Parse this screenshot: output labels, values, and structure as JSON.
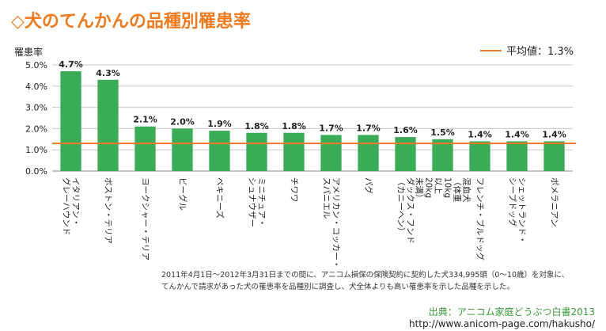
{
  "title": "◇犬のてんかんの品種別罹患率",
  "chart_data": {
    "type": "bar",
    "ylabel": "罹患率",
    "ylim": [
      0,
      5
    ],
    "yticks": [
      "0.0%",
      "1.0%",
      "2.0%",
      "3.0%",
      "4.0%",
      "5.0%"
    ],
    "grid": true,
    "categories": [
      [
        "イタリアン・",
        "グレーハウンド"
      ],
      [
        "ボストン・テリア"
      ],
      [
        "ヨークシャー・テリア"
      ],
      [
        "ビーグル"
      ],
      [
        "ペキニーズ"
      ],
      [
        "ミニチュア・",
        "シュナウザー"
      ],
      [
        "チワワ"
      ],
      [
        "アメリカン・コッカー・",
        "スパニエル"
      ],
      [
        "パグ"
      ],
      [
        "ダックス・フンド",
        "（カニーヘン）"
      ],
      [
        "混血犬",
        "（体重",
        "10kg",
        "以上",
        "20kg",
        "未満）"
      ],
      [
        "フレンチ・ブルドッグ"
      ],
      [
        "シェットランド・",
        "シープドッグ"
      ],
      [
        "ポメラニアン"
      ]
    ],
    "values": [
      4.7,
      4.3,
      2.1,
      2.0,
      1.9,
      1.8,
      1.8,
      1.7,
      1.7,
      1.6,
      1.5,
      1.4,
      1.4,
      1.4
    ],
    "value_labels": [
      "4.7%",
      "4.3%",
      "2.1%",
      "2.0%",
      "1.9%",
      "1.8%",
      "1.8%",
      "1.7%",
      "1.7%",
      "1.6%",
      "1.5%",
      "1.4%",
      "1.4%",
      "1.4%"
    ],
    "reference_line": {
      "label": "平均値：1.3%",
      "value": 1.3,
      "color": "#e87a28"
    },
    "bar_color": "#3aab57",
    "legend_position": "top-right"
  },
  "notes": [
    "2011年4月1日〜2012年3月31日までの間に、アニコム損保の保険契約に契約した犬334,995頭（0〜10歳）を対象に、",
    "てんかんで請求があった犬の罹患率を品種別に調査し、犬全体よりも高い罹患率を示した品種を示した。"
  ],
  "source": "出典：アニコム家庭どうぶつ白書2013",
  "url": "http://www.anicom-page.com/hakusho/"
}
